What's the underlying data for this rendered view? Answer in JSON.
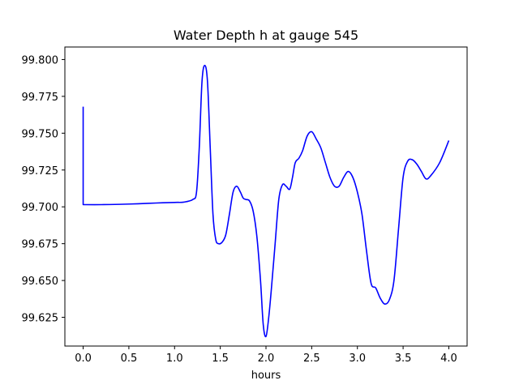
{
  "chart_data": {
    "type": "line",
    "title": "Water Depth h at gauge 545",
    "xlabel": "hours",
    "ylabel": "",
    "xlim": [
      -0.2,
      4.2
    ],
    "ylim": [
      99.6055,
      99.8085
    ],
    "x_ticks": [
      0.0,
      0.5,
      1.0,
      1.5,
      2.0,
      2.5,
      3.0,
      3.5,
      4.0
    ],
    "x_tick_labels": [
      "0.0",
      "0.5",
      "1.0",
      "1.5",
      "2.0",
      "2.5",
      "3.0",
      "3.5",
      "4.0"
    ],
    "y_ticks": [
      99.625,
      99.65,
      99.675,
      99.7,
      99.725,
      99.75,
      99.775,
      99.8
    ],
    "y_tick_labels": [
      "99.625",
      "99.650",
      "99.675",
      "99.700",
      "99.725",
      "99.750",
      "99.775",
      "99.800"
    ],
    "grid": false,
    "series": [
      {
        "color": "#0000ff",
        "x": [
          0.0,
          0.0,
          0.2,
          0.4,
          0.6,
          0.8,
          1.0,
          1.1,
          1.2,
          1.24,
          1.27,
          1.3,
          1.33,
          1.36,
          1.39,
          1.42,
          1.45,
          1.48,
          1.52,
          1.56,
          1.6,
          1.64,
          1.68,
          1.72,
          1.75,
          1.78,
          1.82,
          1.86,
          1.9,
          1.94,
          1.97,
          2.0,
          2.03,
          2.06,
          2.1,
          2.14,
          2.18,
          2.22,
          2.26,
          2.29,
          2.32,
          2.36,
          2.4,
          2.45,
          2.5,
          2.55,
          2.6,
          2.65,
          2.7,
          2.75,
          2.8,
          2.85,
          2.9,
          2.95,
          3.0,
          3.05,
          3.1,
          3.15,
          3.2,
          3.25,
          3.3,
          3.35,
          3.4,
          3.45,
          3.5,
          3.55,
          3.6,
          3.65,
          3.7,
          3.75,
          3.8,
          3.9,
          4.0
        ],
        "y": [
          99.768,
          99.7015,
          99.7015,
          99.7017,
          99.7021,
          99.7026,
          99.703,
          99.7032,
          99.705,
          99.71,
          99.74,
          99.785,
          99.796,
          99.785,
          99.74,
          99.695,
          99.678,
          99.675,
          99.676,
          99.681,
          99.695,
          99.71,
          99.714,
          99.71,
          99.706,
          99.705,
          99.704,
          99.697,
          99.68,
          99.65,
          99.62,
          99.612,
          99.625,
          99.645,
          99.675,
          99.705,
          99.715,
          99.714,
          99.712,
          99.72,
          99.73,
          99.733,
          99.738,
          99.748,
          99.751,
          99.746,
          99.74,
          99.73,
          99.72,
          99.714,
          99.714,
          99.72,
          99.724,
          99.72,
          99.71,
          99.695,
          99.67,
          99.648,
          99.645,
          99.638,
          99.634,
          99.637,
          99.65,
          99.685,
          99.72,
          99.731,
          99.732,
          99.729,
          99.724,
          99.719,
          99.721,
          99.73,
          99.745
        ]
      }
    ]
  }
}
